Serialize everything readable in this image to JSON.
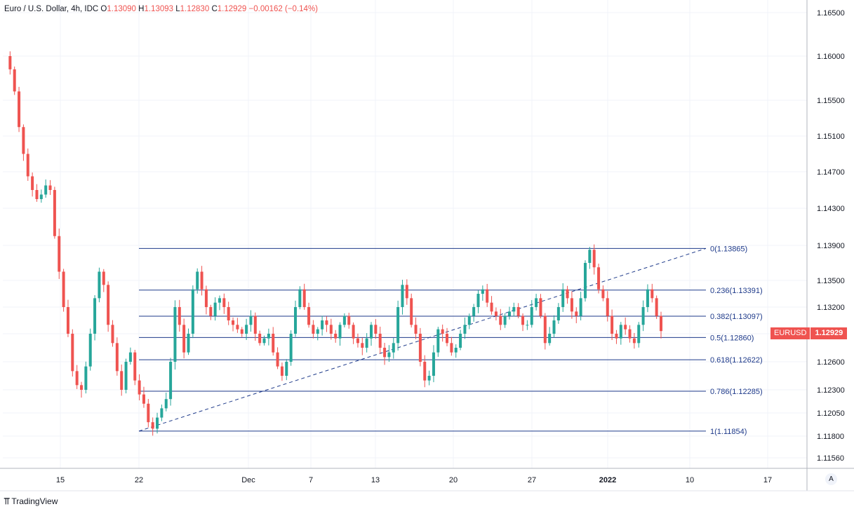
{
  "legend": {
    "symbol": "Euro / U.S. Dollar, 4h, IDC",
    "open_label": "O",
    "open": "1.13090",
    "high_label": "H",
    "high": "1.13093",
    "low_label": "L",
    "low": "1.12830",
    "close_label": "C",
    "close": "1.12929",
    "change": "−0.00162 (−0.14%)"
  },
  "price_tag": {
    "symbol": "EURUSD",
    "value": "1.12929"
  },
  "auto_button": "A",
  "brand": "TradingView",
  "colors": {
    "up": "#26a69a",
    "down": "#ef5350",
    "fib": "#1e3a8a",
    "grid": "#f0f3fa",
    "axis_text": "#131722"
  },
  "chart_data": {
    "type": "candlestick",
    "instrument": "EURUSD",
    "timeframe": "4h",
    "y_ticks": [
      "1.16500",
      "1.16000",
      "1.15500",
      "1.15100",
      "1.14700",
      "1.14300",
      "1.13900",
      "1.13500",
      "1.13200",
      "1.12900",
      "1.12600",
      "1.12300",
      "1.12050",
      "1.11800",
      "1.11560"
    ],
    "x_ticks": [
      "15",
      "22",
      "Dec",
      "7",
      "13",
      "20",
      "27",
      "2022",
      "10",
      "17"
    ],
    "fib_levels": [
      {
        "label": "0(1.13865)",
        "ratio": 0,
        "price": 1.13865
      },
      {
        "label": "0.236(1.13391)",
        "ratio": 0.236,
        "price": 1.13391
      },
      {
        "label": "0.382(1.13097)",
        "ratio": 0.382,
        "price": 1.13097
      },
      {
        "label": "0.5(1.12860)",
        "ratio": 0.5,
        "price": 1.1286
      },
      {
        "label": "0.618(1.12622)",
        "ratio": 0.618,
        "price": 1.12622
      },
      {
        "label": "0.786(1.12285)",
        "ratio": 0.786,
        "price": 1.12285
      },
      {
        "label": "1(1.11854)",
        "ratio": 1,
        "price": 1.11854
      }
    ],
    "trend_line": {
      "from_price": 1.11854,
      "to_price": 1.13865,
      "style": "dashed"
    },
    "close_path": [
      1.16,
      1.1585,
      1.156,
      1.152,
      1.149,
      1.1465,
      1.145,
      1.144,
      1.1445,
      1.1455,
      1.145,
      1.14,
      1.136,
      1.132,
      1.129,
      1.125,
      1.1235,
      1.123,
      1.1255,
      1.129,
      1.133,
      1.136,
      1.1345,
      1.13,
      1.128,
      1.125,
      1.123,
      1.126,
      1.127,
      1.124,
      1.1225,
      1.1215,
      1.1195,
      1.1188,
      1.12,
      1.121,
      1.122,
      1.126,
      1.132,
      1.13,
      1.127,
      1.129,
      1.134,
      1.136,
      1.134,
      1.132,
      1.131,
      1.1325,
      1.133,
      1.132,
      1.1305,
      1.13,
      1.1295,
      1.129,
      1.13,
      1.131,
      1.129,
      1.128,
      1.1285,
      1.129,
      1.127,
      1.1255,
      1.1245,
      1.126,
      1.129,
      1.132,
      1.134,
      1.132,
      1.13,
      1.129,
      1.1295,
      1.1305,
      1.13,
      1.129,
      1.1285,
      1.13,
      1.131,
      1.13,
      1.1285,
      1.128,
      1.1275,
      1.1285,
      1.13,
      1.129,
      1.1275,
      1.1265,
      1.127,
      1.128,
      1.132,
      1.1345,
      1.133,
      1.13,
      1.129,
      1.126,
      1.124,
      1.1245,
      1.127,
      1.1295,
      1.129,
      1.128,
      1.127,
      1.1275,
      1.129,
      1.13,
      1.131,
      1.132,
      1.1335,
      1.134,
      1.1325,
      1.1315,
      1.131,
      1.13,
      1.131,
      1.1315,
      1.132,
      1.131,
      1.13,
      1.13,
      1.132,
      1.133,
      1.131,
      1.128,
      1.129,
      1.1305,
      1.132,
      1.134,
      1.133,
      1.1315,
      1.131,
      1.133,
      1.137,
      1.1385,
      1.1365,
      1.134,
      1.133,
      1.131,
      1.129,
      1.1285,
      1.13,
      1.1295,
      1.1285,
      1.128,
      1.13,
      1.132,
      1.134,
      1.133,
      1.131,
      1.1293
    ]
  }
}
